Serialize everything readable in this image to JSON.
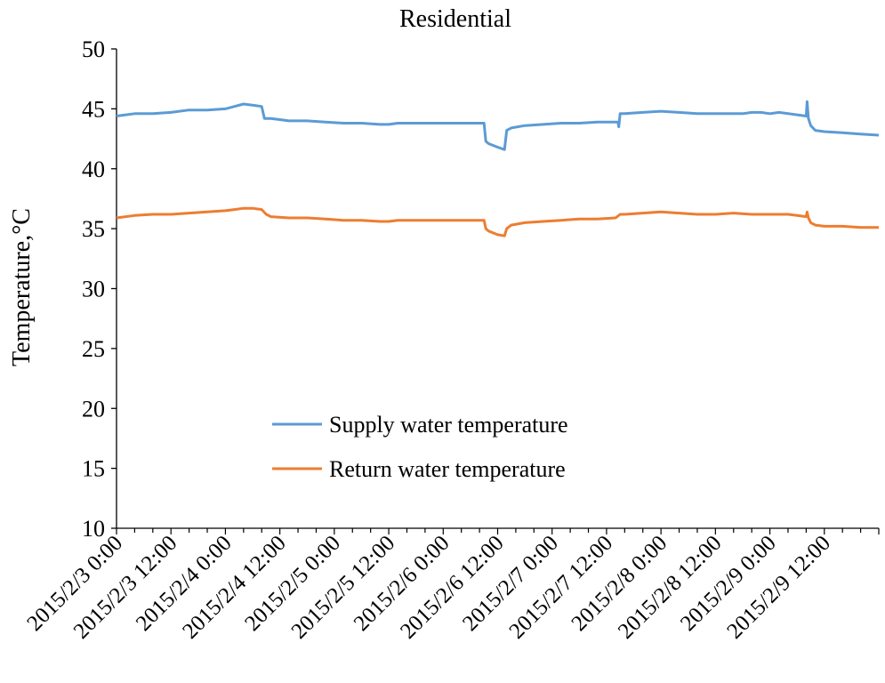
{
  "chart_data": {
    "type": "line",
    "title": "Residential",
    "ylabel": "Temperature,°C",
    "xlabel": "",
    "ylim": [
      10,
      50
    ],
    "yticks": [
      10,
      15,
      20,
      25,
      30,
      35,
      40,
      45,
      50
    ],
    "x_range_hours": [
      0,
      168
    ],
    "x_tick_labels": [
      {
        "hour": 0,
        "label": "2015/2/3 0:00"
      },
      {
        "hour": 12,
        "label": "2015/2/3 12:00"
      },
      {
        "hour": 24,
        "label": "2015/2/4 0:00"
      },
      {
        "hour": 36,
        "label": "2015/2/4 12:00"
      },
      {
        "hour": 48,
        "label": "2015/2/5 0:00"
      },
      {
        "hour": 60,
        "label": "2015/2/5 12:00"
      },
      {
        "hour": 72,
        "label": "2015/2/6 0:00"
      },
      {
        "hour": 84,
        "label": "2015/2/6 12:00"
      },
      {
        "hour": 96,
        "label": "2015/2/7 0:00"
      },
      {
        "hour": 108,
        "label": "2015/2/7 12:00"
      },
      {
        "hour": 120,
        "label": "2015/2/8 0:00"
      },
      {
        "hour": 132,
        "label": "2015/2/8 12:00"
      },
      {
        "hour": 144,
        "label": "2015/2/9 0:00"
      },
      {
        "hour": 156,
        "label": "2015/2/9 12:00"
      }
    ],
    "legend_position": "center",
    "series": [
      {
        "name": "Supply water temperature",
        "color": "#5b9bd5",
        "points": [
          [
            0,
            44.4
          ],
          [
            4,
            44.6
          ],
          [
            8,
            44.6
          ],
          [
            12,
            44.7
          ],
          [
            16,
            44.9
          ],
          [
            20,
            44.9
          ],
          [
            24,
            45.0
          ],
          [
            26,
            45.2
          ],
          [
            28,
            45.4
          ],
          [
            30,
            45.3
          ],
          [
            32,
            45.2
          ],
          [
            32.6,
            44.2
          ],
          [
            34,
            44.2
          ],
          [
            36,
            44.1
          ],
          [
            38,
            44.0
          ],
          [
            42,
            44.0
          ],
          [
            46,
            43.9
          ],
          [
            50,
            43.8
          ],
          [
            54,
            43.8
          ],
          [
            58,
            43.7
          ],
          [
            60,
            43.7
          ],
          [
            62,
            43.8
          ],
          [
            66,
            43.8
          ],
          [
            70,
            43.8
          ],
          [
            74,
            43.8
          ],
          [
            80,
            43.8
          ],
          [
            81,
            43.8
          ],
          [
            81.4,
            42.3
          ],
          [
            82,
            42.1
          ],
          [
            84,
            41.8
          ],
          [
            85.5,
            41.6
          ],
          [
            86,
            43.2
          ],
          [
            87,
            43.4
          ],
          [
            90,
            43.6
          ],
          [
            94,
            43.7
          ],
          [
            98,
            43.8
          ],
          [
            102,
            43.8
          ],
          [
            106,
            43.9
          ],
          [
            110.5,
            43.9
          ],
          [
            110.7,
            43.5
          ],
          [
            111,
            44.6
          ],
          [
            112,
            44.6
          ],
          [
            116,
            44.7
          ],
          [
            120,
            44.8
          ],
          [
            124,
            44.7
          ],
          [
            128,
            44.6
          ],
          [
            132,
            44.6
          ],
          [
            134,
            44.6
          ],
          [
            138,
            44.6
          ],
          [
            140,
            44.7
          ],
          [
            142,
            44.7
          ],
          [
            144,
            44.6
          ],
          [
            146,
            44.7
          ],
          [
            150,
            44.5
          ],
          [
            152,
            44.4
          ],
          [
            152.2,
            45.6
          ],
          [
            152.5,
            44.2
          ],
          [
            153,
            43.6
          ],
          [
            154,
            43.2
          ],
          [
            156,
            43.1
          ],
          [
            160,
            43.0
          ],
          [
            164,
            42.9
          ],
          [
            168,
            42.8
          ]
        ]
      },
      {
        "name": "Return water temperature",
        "color": "#ed7d31",
        "points": [
          [
            0,
            35.9
          ],
          [
            4,
            36.1
          ],
          [
            8,
            36.2
          ],
          [
            12,
            36.2
          ],
          [
            16,
            36.3
          ],
          [
            20,
            36.4
          ],
          [
            24,
            36.5
          ],
          [
            26,
            36.6
          ],
          [
            28,
            36.7
          ],
          [
            30,
            36.7
          ],
          [
            32,
            36.6
          ],
          [
            33,
            36.2
          ],
          [
            34,
            36.0
          ],
          [
            38,
            35.9
          ],
          [
            42,
            35.9
          ],
          [
            46,
            35.8
          ],
          [
            50,
            35.7
          ],
          [
            54,
            35.7
          ],
          [
            58,
            35.6
          ],
          [
            60,
            35.6
          ],
          [
            62,
            35.7
          ],
          [
            66,
            35.7
          ],
          [
            70,
            35.7
          ],
          [
            74,
            35.7
          ],
          [
            80,
            35.7
          ],
          [
            81,
            35.7
          ],
          [
            81.4,
            35.0
          ],
          [
            82,
            34.8
          ],
          [
            84,
            34.5
          ],
          [
            85.5,
            34.4
          ],
          [
            86,
            35.0
          ],
          [
            87,
            35.3
          ],
          [
            90,
            35.5
          ],
          [
            94,
            35.6
          ],
          [
            98,
            35.7
          ],
          [
            102,
            35.8
          ],
          [
            106,
            35.8
          ],
          [
            110,
            35.9
          ],
          [
            111,
            36.2
          ],
          [
            112,
            36.2
          ],
          [
            116,
            36.3
          ],
          [
            120,
            36.4
          ],
          [
            124,
            36.3
          ],
          [
            128,
            36.2
          ],
          [
            132,
            36.2
          ],
          [
            136,
            36.3
          ],
          [
            140,
            36.2
          ],
          [
            144,
            36.2
          ],
          [
            148,
            36.2
          ],
          [
            150,
            36.1
          ],
          [
            152,
            36.0
          ],
          [
            152.2,
            36.4
          ],
          [
            152.5,
            35.9
          ],
          [
            153,
            35.5
          ],
          [
            154,
            35.3
          ],
          [
            156,
            35.2
          ],
          [
            160,
            35.2
          ],
          [
            164,
            35.1
          ],
          [
            168,
            35.1
          ]
        ]
      }
    ]
  }
}
